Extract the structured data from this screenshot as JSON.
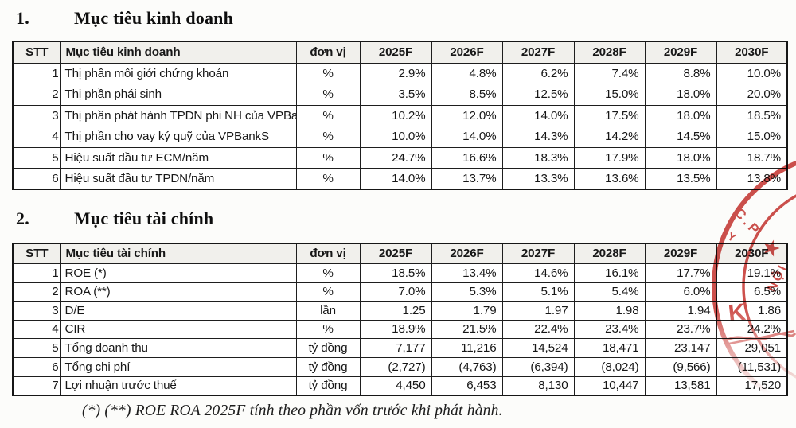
{
  "sections": [
    {
      "number": "1.",
      "title": "Mục tiêu kinh doanh"
    },
    {
      "number": "2.",
      "title": "Mục tiêu tài chính"
    }
  ],
  "tables": [
    {
      "name": "business-targets",
      "headers": [
        "STT",
        "Mục tiêu kinh doanh",
        "đơn vị",
        "2025F",
        "2026F",
        "2027F",
        "2028F",
        "2029F",
        "2030F"
      ],
      "rows": [
        [
          "1",
          "Thị phần môi giới chứng khoán",
          "%",
          "2.9%",
          "4.8%",
          "6.2%",
          "7.4%",
          "8.8%",
          "10.0%"
        ],
        [
          "2",
          "Thị phần phái sinh",
          "%",
          "3.5%",
          "8.5%",
          "12.5%",
          "15.0%",
          "18.0%",
          "20.0%"
        ],
        [
          "3",
          "Thị phần phát hành TPDN phi NH của VPBankS",
          "%",
          "10.2%",
          "12.0%",
          "14.0%",
          "17.5%",
          "18.0%",
          "18.5%"
        ],
        [
          "4",
          "Thị phần cho vay ký quỹ của VPBankS",
          "%",
          "10.0%",
          "14.0%",
          "14.3%",
          "14.2%",
          "14.5%",
          "15.0%"
        ],
        [
          "5",
          "Hiệu suất đầu tư ECM/năm",
          "%",
          "24.7%",
          "16.6%",
          "18.3%",
          "17.9%",
          "18.0%",
          "18.7%"
        ],
        [
          "6",
          "Hiệu suất đầu tư TPDN/năm",
          "%",
          "14.0%",
          "13.7%",
          "13.3%",
          "13.6%",
          "13.5%",
          "13.8%"
        ]
      ]
    },
    {
      "name": "financial-targets",
      "headers": [
        "STT",
        "Mục tiêu tài chính",
        "đơn vị",
        "2025F",
        "2026F",
        "2027F",
        "2028F",
        "2029F",
        "2030F"
      ],
      "rows": [
        [
          "1",
          "ROE (*)",
          "%",
          "18.5%",
          "13.4%",
          "14.6%",
          "16.1%",
          "17.7%",
          "19.1%"
        ],
        [
          "2",
          "ROA (**)",
          "%",
          "7.0%",
          "5.3%",
          "5.1%",
          "5.4%",
          "6.0%",
          "6.5%"
        ],
        [
          "3",
          "D/E",
          "lần",
          "1.25",
          "1.79",
          "1.97",
          "1.98",
          "1.94",
          "1.86"
        ],
        [
          "4",
          "CIR",
          "%",
          "18.9%",
          "21.5%",
          "22.4%",
          "23.4%",
          "23.7%",
          "24.2%"
        ],
        [
          "5",
          "Tổng doanh thu",
          "tỷ đồng",
          "7,177",
          "11,216",
          "14,524",
          "18,471",
          "23,147",
          "29,051"
        ],
        [
          "6",
          "Tổng chi phí",
          "tỷ đồng",
          "(2,727)",
          "(4,763)",
          "(6,394)",
          "(8,024)",
          "(9,566)",
          "(11,531)"
        ],
        [
          "7",
          "Lợi nhuận trước thuế",
          "tỷ đồng",
          "4,450",
          "6,453",
          "8,130",
          "10,447",
          "13,581",
          "17,520"
        ]
      ]
    }
  ],
  "footnote": {
    "text": "(*) (**) ROE ROA 2025F tính theo phần vốn trước khi phát hành."
  },
  "stamp": {
    "color": "#c5312c",
    "fragments": {
      "arc_top": "C.P",
      "arc_left": "Y",
      "inner_right": "NỘI",
      "star": "★",
      "inner_letter": "K"
    }
  }
}
